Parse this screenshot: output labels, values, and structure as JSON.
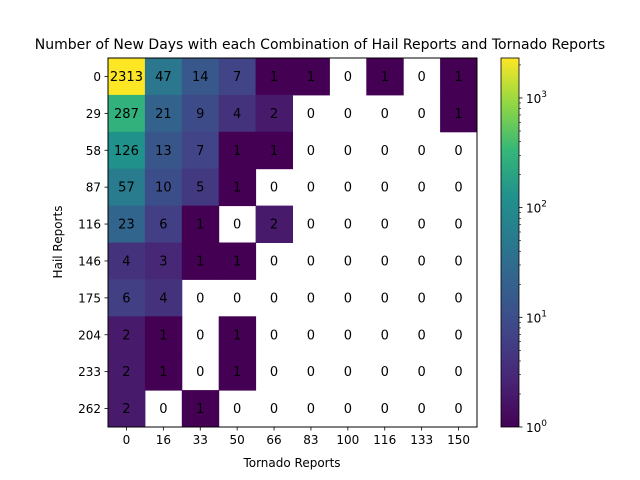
{
  "chart_data": {
    "type": "heatmap",
    "title": "Number of New Days with each Combination of Hail Reports and Tornado Reports",
    "xlabel": "Tornado Reports",
    "ylabel": "Hail Reports",
    "x_ticks": [
      "0",
      "16",
      "33",
      "50",
      "66",
      "83",
      "100",
      "116",
      "133",
      "150"
    ],
    "y_ticks": [
      "0",
      "29",
      "58",
      "87",
      "116",
      "146",
      "175",
      "204",
      "233",
      "262"
    ],
    "values": [
      [
        2313,
        47,
        14,
        7,
        1,
        1,
        0,
        1,
        0,
        1
      ],
      [
        287,
        21,
        9,
        4,
        2,
        0,
        0,
        0,
        0,
        1
      ],
      [
        126,
        13,
        7,
        1,
        1,
        0,
        0,
        0,
        0,
        0
      ],
      [
        57,
        10,
        5,
        1,
        0,
        0,
        0,
        0,
        0,
        0
      ],
      [
        23,
        6,
        1,
        0,
        2,
        0,
        0,
        0,
        0,
        0
      ],
      [
        4,
        3,
        1,
        1,
        0,
        0,
        0,
        0,
        0,
        0
      ],
      [
        6,
        4,
        0,
        0,
        0,
        0,
        0,
        0,
        0,
        0
      ],
      [
        2,
        1,
        0,
        1,
        0,
        0,
        0,
        0,
        0,
        0
      ],
      [
        2,
        1,
        0,
        1,
        0,
        0,
        0,
        0,
        0,
        0
      ],
      [
        2,
        0,
        1,
        0,
        0,
        0,
        0,
        0,
        0,
        0
      ]
    ],
    "colorbar": {
      "scale": "log",
      "range": [
        1,
        2313
      ],
      "colormap": "viridis",
      "zero_cells": "blank",
      "tick_labels": [
        {
          "value": 1,
          "base": "10",
          "exp": "0"
        },
        {
          "value": 10,
          "base": "10",
          "exp": "1"
        },
        {
          "value": 100,
          "base": "10",
          "exp": "2"
        },
        {
          "value": 1000,
          "base": "10",
          "exp": "3"
        }
      ]
    }
  }
}
